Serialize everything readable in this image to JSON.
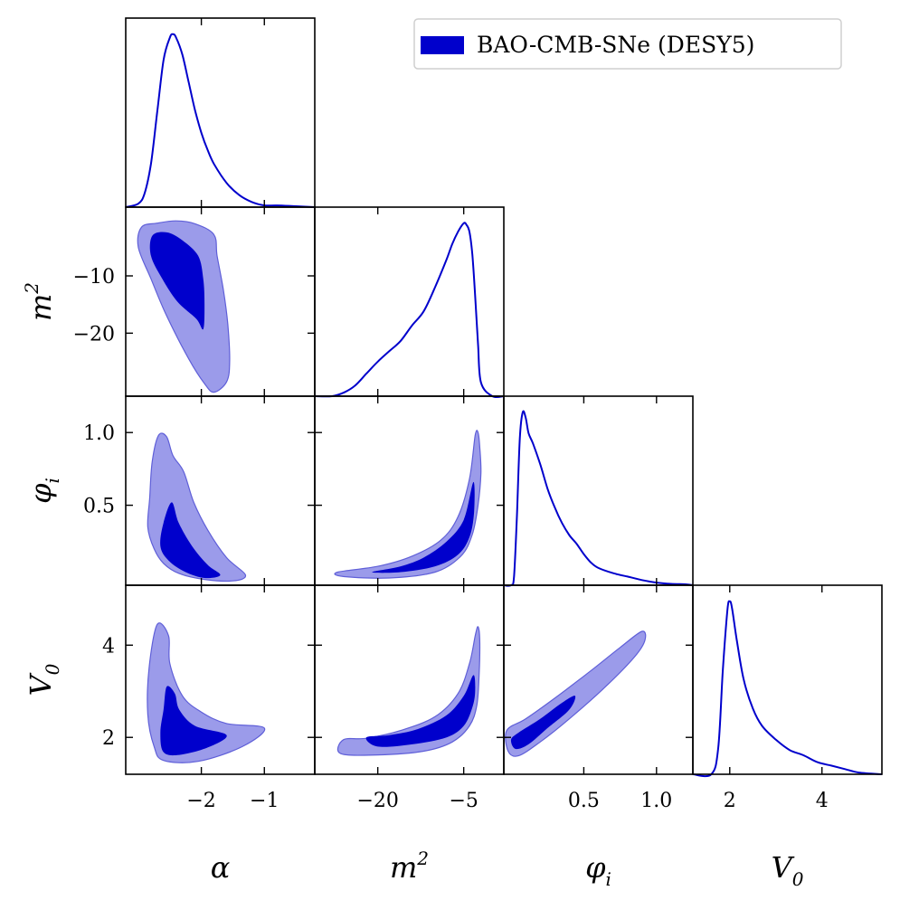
{
  "chart_data": {
    "type": "corner",
    "legend": {
      "label": "BAO-CMB-SNe (DESY5)",
      "color": "#0000cc",
      "position": "top-right"
    },
    "colors": {
      "line": "#0000cc",
      "inner": "#0000cc",
      "outer": "#9b9bea",
      "outer_edge": "#5f5fd8"
    },
    "parameters": [
      {
        "name": "alpha",
        "label": "α",
        "sub": "",
        "sup": "",
        "range": [
          -3.2,
          -0.2
        ],
        "ticks": [
          -2,
          -1
        ],
        "ticklabels": [
          "−2",
          "−1"
        ]
      },
      {
        "name": "m2",
        "label": "m",
        "sub": "",
        "sup": "2",
        "range": [
          -31,
          2
        ],
        "ticks": [
          -20,
          -5
        ],
        "ticklabels": [
          "−20",
          "−5"
        ]
      },
      {
        "name": "phi_i",
        "label": "φ",
        "sub": "i",
        "sup": "",
        "range": [
          -0.05,
          1.25
        ],
        "ticks": [
          0.5,
          1.0
        ],
        "ticklabels": [
          "0.5",
          "1.0"
        ]
      },
      {
        "name": "V0",
        "label": "V",
        "sub": "0",
        "sup": "",
        "range": [
          1.2,
          5.3
        ],
        "ticks": [
          2,
          4
        ],
        "ticklabels": [
          "2",
          "4"
        ]
      }
    ],
    "row_ticks": {
      "m2": {
        "ticks": [
          -10,
          -20
        ],
        "ticklabels": [
          "−10",
          "−20"
        ]
      },
      "phi_i": {
        "ticks": [
          1.0,
          0.5
        ],
        "ticklabels": [
          "1.0",
          "0.5"
        ]
      },
      "V0": {
        "ticks": [
          4,
          2
        ],
        "ticklabels": [
          "4",
          "2"
        ]
      }
    },
    "marginals": {
      "alpha": {
        "x": [
          -3.2,
          -3.0,
          -2.9,
          -2.8,
          -2.7,
          -2.6,
          -2.5,
          -2.45,
          -2.4,
          -2.3,
          -2.2,
          -2.1,
          -2.0,
          -1.9,
          -1.8,
          -1.6,
          -1.4,
          -1.2,
          -1.0,
          -0.8,
          -0.5,
          -0.2
        ],
        "y": [
          0.0,
          0.02,
          0.08,
          0.25,
          0.55,
          0.85,
          0.98,
          1.0,
          0.98,
          0.88,
          0.72,
          0.56,
          0.43,
          0.33,
          0.25,
          0.14,
          0.07,
          0.03,
          0.01,
          0.01,
          0.005,
          0.0
        ]
      },
      "m2": {
        "x": [
          -31,
          -28,
          -26,
          -24,
          -22,
          -20,
          -18,
          -16,
          -14,
          -12,
          -10,
          -8,
          -7,
          -6,
          -5,
          -4.5,
          -4,
          -3.5,
          -3,
          -2.5,
          -2,
          0,
          2
        ],
        "y": [
          0.0,
          0.0,
          0.02,
          0.06,
          0.13,
          0.2,
          0.26,
          0.32,
          0.41,
          0.49,
          0.63,
          0.79,
          0.88,
          0.95,
          1.0,
          0.99,
          0.95,
          0.82,
          0.58,
          0.3,
          0.08,
          0.0,
          0.0
        ]
      },
      "phi_i": {
        "x": [
          -0.05,
          0.0,
          0.02,
          0.04,
          0.06,
          0.08,
          0.1,
          0.12,
          0.15,
          0.2,
          0.25,
          0.3,
          0.35,
          0.4,
          0.45,
          0.5,
          0.55,
          0.6,
          0.7,
          0.8,
          0.9,
          1.0,
          1.1,
          1.2,
          1.25
        ],
        "y": [
          0.0,
          0.0,
          0.05,
          0.4,
          0.85,
          1.0,
          0.97,
          0.88,
          0.82,
          0.7,
          0.56,
          0.45,
          0.36,
          0.29,
          0.24,
          0.18,
          0.13,
          0.1,
          0.07,
          0.05,
          0.03,
          0.015,
          0.008,
          0.005,
          0.0
        ]
      },
      "V0": {
        "x": [
          1.2,
          1.6,
          1.75,
          1.85,
          1.95,
          2.0,
          2.05,
          2.15,
          2.3,
          2.5,
          2.7,
          3.0,
          3.3,
          3.6,
          3.9,
          4.2,
          4.5,
          4.8,
          5.3
        ],
        "y": [
          0.0,
          0.0,
          0.15,
          0.6,
          0.95,
          1.0,
          0.96,
          0.78,
          0.55,
          0.38,
          0.28,
          0.2,
          0.14,
          0.11,
          0.07,
          0.05,
          0.03,
          0.01,
          0.0
        ]
      }
    },
    "contours": {
      "m2_alpha": {
        "outer": [
          [
            -2.95,
            -1.5
          ],
          [
            -2.7,
            -0.8
          ],
          [
            -2.4,
            -0.4
          ],
          [
            -2.1,
            -0.9
          ],
          [
            -1.8,
            -2.8
          ],
          [
            -1.75,
            -6.5
          ],
          [
            -1.65,
            -12.5
          ],
          [
            -1.58,
            -18.5
          ],
          [
            -1.55,
            -25.0
          ],
          [
            -1.6,
            -28.5
          ],
          [
            -1.8,
            -30.3
          ],
          [
            -1.95,
            -28.8
          ],
          [
            -2.2,
            -24.5
          ],
          [
            -2.55,
            -17.0
          ],
          [
            -2.8,
            -10.5
          ],
          [
            -3.0,
            -5.0
          ]
        ],
        "inner": [
          [
            -2.78,
            -3.0
          ],
          [
            -2.55,
            -2.4
          ],
          [
            -2.3,
            -3.8
          ],
          [
            -2.05,
            -6.5
          ],
          [
            -1.97,
            -10.5
          ],
          [
            -1.95,
            -15.0
          ],
          [
            -1.97,
            -19.3
          ],
          [
            -2.08,
            -17.5
          ],
          [
            -2.38,
            -14.5
          ],
          [
            -2.62,
            -10.5
          ],
          [
            -2.8,
            -6.5
          ]
        ]
      },
      "phi_alpha": {
        "outer": [
          [
            -2.68,
            0.98
          ],
          [
            -2.55,
            0.97
          ],
          [
            -2.45,
            0.84
          ],
          [
            -2.28,
            0.73
          ],
          [
            -2.12,
            0.52
          ],
          [
            -1.9,
            0.33
          ],
          [
            -1.6,
            0.14
          ],
          [
            -1.3,
            0.02
          ],
          [
            -1.5,
            -0.02
          ],
          [
            -1.95,
            -0.01
          ],
          [
            -2.35,
            0.03
          ],
          [
            -2.6,
            0.1
          ],
          [
            -2.75,
            0.2
          ],
          [
            -2.85,
            0.35
          ],
          [
            -2.82,
            0.55
          ],
          [
            -2.78,
            0.8
          ]
        ],
        "inner": [
          [
            -2.6,
            0.38
          ],
          [
            -2.47,
            0.52
          ],
          [
            -2.36,
            0.38
          ],
          [
            -2.15,
            0.22
          ],
          [
            -1.9,
            0.09
          ],
          [
            -1.7,
            0.02
          ],
          [
            -1.95,
            0.0
          ],
          [
            -2.25,
            0.04
          ],
          [
            -2.52,
            0.12
          ],
          [
            -2.65,
            0.22
          ]
        ]
      },
      "V0_alpha": {
        "outer": [
          [
            -2.7,
            4.45
          ],
          [
            -2.52,
            4.2
          ],
          [
            -2.5,
            3.6
          ],
          [
            -2.3,
            2.9
          ],
          [
            -2.0,
            2.55
          ],
          [
            -1.6,
            2.3
          ],
          [
            -1.0,
            2.2
          ],
          [
            -1.35,
            1.8
          ],
          [
            -2.05,
            1.48
          ],
          [
            -2.6,
            1.5
          ],
          [
            -2.75,
            1.8
          ],
          [
            -2.85,
            2.5
          ],
          [
            -2.83,
            3.5
          ]
        ],
        "inner": [
          [
            -2.55,
            3.1
          ],
          [
            -2.42,
            2.95
          ],
          [
            -2.35,
            2.6
          ],
          [
            -2.1,
            2.25
          ],
          [
            -1.6,
            2.05
          ],
          [
            -1.9,
            1.78
          ],
          [
            -2.35,
            1.62
          ],
          [
            -2.6,
            1.68
          ],
          [
            -2.65,
            2.1
          ],
          [
            -2.6,
            2.6
          ]
        ]
      },
      "phi_m2": {
        "outer": [
          [
            -2.5,
            1.0
          ],
          [
            -3.0,
            0.98
          ],
          [
            -4.0,
            0.68
          ],
          [
            -6.0,
            0.42
          ],
          [
            -9.0,
            0.26
          ],
          [
            -14.0,
            0.15
          ],
          [
            -20.0,
            0.08
          ],
          [
            -27.0,
            0.04
          ],
          [
            -26.0,
            0.01
          ],
          [
            -18.0,
            0.0
          ],
          [
            -10.0,
            0.04
          ],
          [
            -5.5,
            0.15
          ],
          [
            -3.5,
            0.3
          ],
          [
            -2.5,
            0.5
          ],
          [
            -2.0,
            0.72
          ],
          [
            -2.2,
            0.9
          ]
        ],
        "inner": [
          [
            -3.3,
            0.66
          ],
          [
            -5.0,
            0.4
          ],
          [
            -8.0,
            0.25
          ],
          [
            -12.0,
            0.14
          ],
          [
            -16.0,
            0.08
          ],
          [
            -21.0,
            0.04
          ],
          [
            -16.0,
            0.04
          ],
          [
            -10.0,
            0.08
          ],
          [
            -6.0,
            0.16
          ],
          [
            -4.0,
            0.28
          ],
          [
            -3.2,
            0.45
          ]
        ]
      },
      "V0_m2": {
        "outer": [
          [
            -2.5,
            4.4
          ],
          [
            -3.0,
            4.2
          ],
          [
            -4.0,
            3.6
          ],
          [
            -6.0,
            2.95
          ],
          [
            -10.0,
            2.45
          ],
          [
            -16.0,
            2.15
          ],
          [
            -22.0,
            1.98
          ],
          [
            -26.0,
            1.95
          ],
          [
            -26.5,
            1.65
          ],
          [
            -20.0,
            1.62
          ],
          [
            -12.0,
            1.7
          ],
          [
            -7.0,
            1.9
          ],
          [
            -4.0,
            2.25
          ],
          [
            -2.7,
            2.7
          ],
          [
            -2.3,
            3.4
          ],
          [
            -2.2,
            4.1
          ]
        ],
        "inner": [
          [
            -3.3,
            3.35
          ],
          [
            -5.0,
            2.9
          ],
          [
            -8.0,
            2.48
          ],
          [
            -13.0,
            2.18
          ],
          [
            -18.0,
            2.05
          ],
          [
            -22.0,
            2.0
          ],
          [
            -20.0,
            1.8
          ],
          [
            -14.0,
            1.85
          ],
          [
            -8.0,
            2.0
          ],
          [
            -5.0,
            2.25
          ],
          [
            -3.5,
            2.65
          ],
          [
            -3.0,
            3.0
          ]
        ]
      },
      "V0_phi": {
        "outer": [
          [
            -0.03,
            2.15
          ],
          [
            0.1,
            2.4
          ],
          [
            0.3,
            2.85
          ],
          [
            0.55,
            3.45
          ],
          [
            0.75,
            3.95
          ],
          [
            0.9,
            4.3
          ],
          [
            0.92,
            4.1
          ],
          [
            0.85,
            3.75
          ],
          [
            0.65,
            3.1
          ],
          [
            0.4,
            2.4
          ],
          [
            0.2,
            1.9
          ],
          [
            0.05,
            1.6
          ],
          [
            -0.02,
            1.7
          ]
        ],
        "inner": [
          [
            0.05,
            2.1
          ],
          [
            0.2,
            2.4
          ],
          [
            0.35,
            2.75
          ],
          [
            0.44,
            2.9
          ],
          [
            0.4,
            2.6
          ],
          [
            0.25,
            2.2
          ],
          [
            0.12,
            1.85
          ],
          [
            0.03,
            1.75
          ],
          [
            0.0,
            1.95
          ]
        ]
      }
    }
  }
}
